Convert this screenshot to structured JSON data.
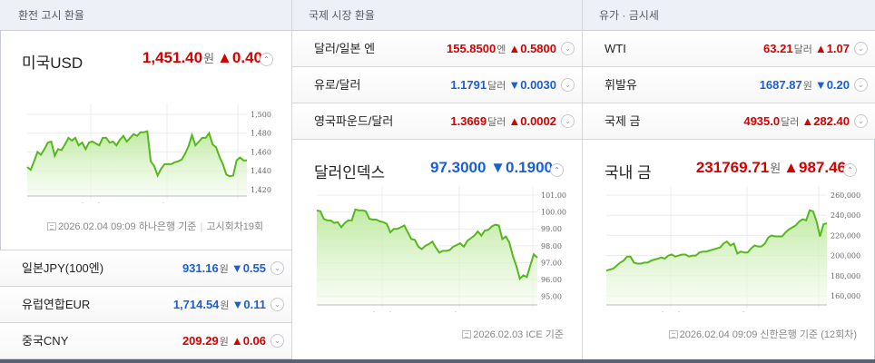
{
  "col1": {
    "header": "환전 고시 환율",
    "main": {
      "name": "미국USD",
      "value": "1,451.40",
      "unit": "원",
      "change": "▲0.40",
      "direction": "up",
      "source_date": "2026.02.04 09:09 하나은행 기준",
      "source_extra": "고시회차19회"
    },
    "rows": [
      {
        "name": "일본JPY(100엔)",
        "value": "931.16",
        "unit": "원",
        "change": "▼0.55",
        "direction": "down"
      },
      {
        "name": "유럽연합EUR",
        "value": "1,714.54",
        "unit": "원",
        "change": "▼0.11",
        "direction": "down"
      },
      {
        "name": "중국CNY",
        "value": "209.29",
        "unit": "원",
        "change": "▲0.06",
        "direction": "up"
      }
    ]
  },
  "col2": {
    "header": "국제 시장 환율",
    "rows": [
      {
        "name": "달러/일본 엔",
        "value": "155.8500",
        "unit": "엔",
        "change": "▲0.5800",
        "direction": "up"
      },
      {
        "name": "유로/달러",
        "value": "1.1791",
        "unit": "달러",
        "change": "▼0.0030",
        "direction": "down"
      },
      {
        "name": "영국파운드/달러",
        "value": "1.3669",
        "unit": "달러",
        "change": "▲0.0002",
        "direction": "up"
      }
    ],
    "main": {
      "name": "달러인덱스",
      "value": "97.3000",
      "unit": "",
      "change": "▼0.1900",
      "direction": "down",
      "source_date": "2026.02.03 ICE 기준"
    }
  },
  "col3": {
    "header": "유가 · 금시세",
    "rows": [
      {
        "name": "WTI",
        "value": "63.21",
        "unit": "달러",
        "change": "▲1.07",
        "direction": "up"
      },
      {
        "name": "휘발유",
        "value": "1687.87",
        "unit": "원",
        "change": "▼0.20",
        "direction": "down"
      },
      {
        "name": "국제 금",
        "value": "4935.0",
        "unit": "달러",
        "change": "▲282.40",
        "direction": "up"
      }
    ],
    "main": {
      "name": "국내 금",
      "value": "231769.71",
      "unit": "원",
      "change": "▲987.46",
      "direction": "up",
      "source_date": "2026.02.04 09:09 신한은행 기준 (12회차)"
    }
  },
  "icons": {
    "expand": "⌃",
    "collapse": "⌄"
  },
  "colors": {
    "up": "#d50000",
    "down": "#1a5fd6",
    "line": "#56b81c",
    "header_bg": "#eef0f7"
  },
  "chart_data": [
    {
      "type": "area",
      "title": "미국USD",
      "x_ticks": [
        "12/01",
        "01/02",
        "02/02"
      ],
      "y_ticks": [
        1420,
        1440,
        1460,
        1480,
        1500
      ],
      "ylim": [
        1413,
        1502
      ],
      "values": [
        1444,
        1441,
        1450,
        1460,
        1457,
        1463,
        1470,
        1471,
        1456,
        1463,
        1462,
        1468,
        1475,
        1472,
        1475,
        1467,
        1470,
        1463,
        1470,
        1471,
        1469,
        1467,
        1475,
        1475,
        1470,
        1471,
        1467,
        1473,
        1477,
        1471,
        1475,
        1479,
        1477,
        1481,
        1481,
        1482,
        1450,
        1445,
        1435,
        1442,
        1447,
        1447,
        1447,
        1449,
        1450,
        1452,
        1458,
        1466,
        1478,
        1467,
        1471,
        1475,
        1475,
        1480,
        1468,
        1465,
        1455,
        1447,
        1436,
        1434,
        1435,
        1451,
        1454,
        1451,
        1451
      ]
    },
    {
      "type": "area",
      "title": "달러인덱스",
      "x_ticks": [
        "12/01",
        "01/02",
        "02/02"
      ],
      "y_ticks": [
        95.0,
        96.0,
        97.0,
        98.0,
        99.0,
        100.0,
        101.0
      ],
      "ylim": [
        94.5,
        101.0
      ],
      "values": [
        100.1,
        100.05,
        99.6,
        99.5,
        99.5,
        99.35,
        99.4,
        99.1,
        99.35,
        99.5,
        99.5,
        100.15,
        100.1,
        100.1,
        100.05,
        99.6,
        99.55,
        99.55,
        99.45,
        99.4,
        99.3,
        98.8,
        99.0,
        99.0,
        99.1,
        99.2,
        98.8,
        98.4,
        98.35,
        97.95,
        97.8,
        98.0,
        98.1,
        98.25,
        97.9,
        97.6,
        97.7,
        97.7,
        97.75,
        97.95,
        98.05,
        98.15,
        97.95,
        98.3,
        98.45,
        98.6,
        98.85,
        98.6,
        98.9,
        98.95,
        99.15,
        99.25,
        99.2,
        98.4,
        98.55,
        98.2,
        97.4,
        96.8,
        96.05,
        96.25,
        96.15,
        96.85,
        97.5,
        97.3
      ]
    },
    {
      "type": "area",
      "title": "국내 금",
      "x_ticks": [
        "12/01",
        "01/02",
        "02/02"
      ],
      "y_ticks": [
        160000,
        180000,
        200000,
        220000,
        240000,
        260000
      ],
      "ylim": [
        151000,
        260000
      ],
      "values": [
        185000,
        186000,
        187000,
        190000,
        193000,
        195000,
        199000,
        199000,
        193000,
        192000,
        192000,
        193000,
        193000,
        195000,
        196000,
        197000,
        198000,
        197000,
        200000,
        201000,
        199000,
        200000,
        201000,
        201000,
        199000,
        200000,
        200000,
        203000,
        204000,
        204000,
        205000,
        206000,
        207000,
        208000,
        212000,
        214000,
        210000,
        212000,
        202000,
        204000,
        203000,
        203000,
        207000,
        210000,
        209000,
        209000,
        212000,
        218000,
        220000,
        219000,
        219000,
        219000,
        223000,
        226000,
        228000,
        230000,
        234000,
        236000,
        235000,
        245000,
        244000,
        234000,
        219000,
        231000,
        232000
      ]
    }
  ]
}
